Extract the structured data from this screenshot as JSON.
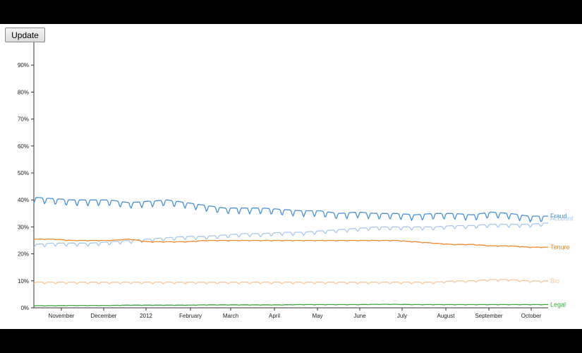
{
  "toolbar": {
    "update_label": "Update"
  },
  "chart_data": {
    "type": "line",
    "title": "",
    "xlabel": "",
    "ylabel": "",
    "ylim": [
      0,
      1
    ],
    "y_ticks": [
      "0%",
      "10%",
      "20%",
      "30%",
      "40%",
      "50%",
      "60%",
      "70%",
      "80%",
      "90%"
    ],
    "x_ticks": [
      "November",
      "December",
      "2012",
      "February",
      "March",
      "April",
      "May",
      "June",
      "July",
      "August",
      "September",
      "October"
    ],
    "grid": false,
    "series": [
      {
        "name": "Fraud",
        "color": "#4a90d9",
        "weekly_amplitude": 0.022,
        "values": [
          0.41,
          0.405,
          0.4,
          0.4,
          0.4,
          0.39,
          0.395,
          0.4,
          0.39,
          0.38,
          0.37,
          0.37,
          0.37,
          0.365,
          0.36,
          0.36,
          0.35,
          0.355,
          0.35,
          0.35,
          0.345,
          0.35,
          0.35,
          0.345,
          0.355,
          0.35,
          0.34,
          0.34
        ]
      },
      {
        "name": "Account",
        "color": "#a9c8f0",
        "weekly_amplitude": 0.012,
        "values": [
          0.235,
          0.24,
          0.24,
          0.24,
          0.245,
          0.25,
          0.255,
          0.26,
          0.265,
          0.265,
          0.27,
          0.275,
          0.275,
          0.28,
          0.28,
          0.285,
          0.29,
          0.295,
          0.3,
          0.3,
          0.3,
          0.3,
          0.305,
          0.305,
          0.31,
          0.31,
          0.31,
          0.315
        ]
      },
      {
        "name": "Tenure",
        "color": "#f0882e",
        "weekly_amplitude": 0.002,
        "values": [
          0.255,
          0.255,
          0.25,
          0.25,
          0.25,
          0.255,
          0.245,
          0.245,
          0.245,
          0.25,
          0.25,
          0.25,
          0.25,
          0.25,
          0.25,
          0.25,
          0.25,
          0.25,
          0.25,
          0.25,
          0.245,
          0.24,
          0.235,
          0.235,
          0.23,
          0.23,
          0.225,
          0.225
        ]
      },
      {
        "name": "Bio",
        "color": "#f5c8a0",
        "weekly_amplitude": 0.006,
        "values": [
          0.095,
          0.095,
          0.095,
          0.095,
          0.095,
          0.095,
          0.095,
          0.095,
          0.095,
          0.095,
          0.095,
          0.095,
          0.095,
          0.095,
          0.095,
          0.095,
          0.095,
          0.095,
          0.095,
          0.095,
          0.095,
          0.095,
          0.1,
          0.1,
          0.105,
          0.105,
          0.1,
          0.1
        ]
      },
      {
        "name": "Legal",
        "color": "#3aa83a",
        "weekly_amplitude": 0.001,
        "values": [
          0.008,
          0.008,
          0.009,
          0.009,
          0.009,
          0.01,
          0.01,
          0.01,
          0.01,
          0.011,
          0.011,
          0.011,
          0.011,
          0.011,
          0.012,
          0.012,
          0.012,
          0.012,
          0.013,
          0.013,
          0.012,
          0.012,
          0.012,
          0.012,
          0.012,
          0.012,
          0.012,
          0.012
        ]
      }
    ]
  }
}
